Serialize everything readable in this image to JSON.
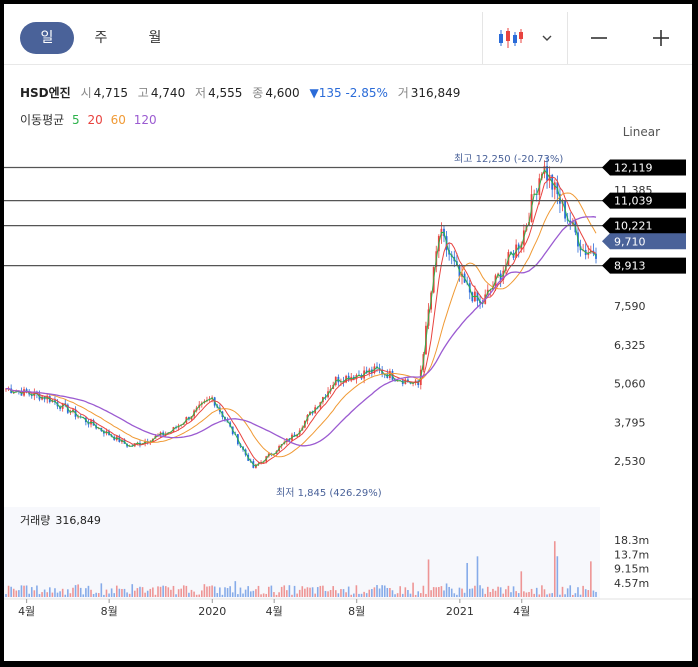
{
  "tabs": [
    "일",
    "주",
    "월"
  ],
  "active_tab": 0,
  "tools": {
    "candle_icon": "candlestick-icon",
    "dropdown_icon": "chevron-down-icon",
    "zoom_out_icon": "minus-icon",
    "zoom_in_icon": "plus-icon"
  },
  "stock": {
    "name": "HSD엔진",
    "open_label": "시",
    "open": "4,715",
    "high_label": "고",
    "high": "4,740",
    "low_label": "저",
    "low": "4,555",
    "close_label": "종",
    "close": "4,600",
    "change": "▼135 -2.85%",
    "volume_label": "거",
    "volume": "316,849"
  },
  "moving_average": {
    "label": "이동평균",
    "periods": [
      {
        "value": "5",
        "color": "#2db24b"
      },
      {
        "value": "20",
        "color": "#e8433f"
      },
      {
        "value": "60",
        "color": "#f09a35"
      },
      {
        "value": "120",
        "color": "#9b5bd1"
      }
    ]
  },
  "scale_mode": "Linear",
  "chart_data": {
    "type": "candlestick",
    "price_axis_ticks": [
      "11,385",
      "7,590",
      "6,325",
      "5,060",
      "3,795",
      "2,530"
    ],
    "time_axis_ticks": [
      "4월",
      "8월",
      "2020",
      "4월",
      "8월",
      "2021",
      "4월"
    ],
    "price_tags": [
      {
        "value": "12,119",
        "style": "black"
      },
      {
        "value": "11,039",
        "style": "black"
      },
      {
        "value": "10,221",
        "style": "black"
      },
      {
        "value": "9,710",
        "style": "blue"
      },
      {
        "value": "8,913",
        "style": "black"
      }
    ],
    "high_annotation": "최고 12,250 (-20.73%)",
    "low_annotation": "최저 1,845 (426.29%)",
    "approx_price_path": [
      {
        "t": "2019-03",
        "price": 4900
      },
      {
        "t": "2019-05",
        "price": 4600
      },
      {
        "t": "2019-07",
        "price": 3800
      },
      {
        "t": "2019-09",
        "price": 3000
      },
      {
        "t": "2019-11",
        "price": 3500
      },
      {
        "t": "2020-01",
        "price": 4600
      },
      {
        "t": "2020-03",
        "price": 2300
      },
      {
        "t": "2020-05",
        "price": 3400
      },
      {
        "t": "2020-07",
        "price": 5200
      },
      {
        "t": "2020-09",
        "price": 5500
      },
      {
        "t": "2020-11",
        "price": 5000
      },
      {
        "t": "2020-12",
        "price": 10000
      },
      {
        "t": "2021-01",
        "price": 8500
      },
      {
        "t": "2021-02",
        "price": 7600
      },
      {
        "t": "2021-04",
        "price": 9800
      },
      {
        "t": "2021-05",
        "price": 12200
      },
      {
        "t": "2021-06",
        "price": 10800
      },
      {
        "t": "2021-07",
        "price": 9400
      }
    ],
    "volume_panel": {
      "label": "거래량",
      "value": "316,849",
      "axis_ticks": [
        "18.3m",
        "13.7m",
        "9.15m",
        "4.57m"
      ]
    },
    "colors": {
      "up": "#e8433f",
      "down": "#2a6bd8",
      "ma5": "#2db24b",
      "ma20": "#e8433f",
      "ma60": "#f09a35",
      "ma120": "#9b5bd1",
      "tag_black": "#000000",
      "tag_blue": "#4a6299"
    }
  }
}
